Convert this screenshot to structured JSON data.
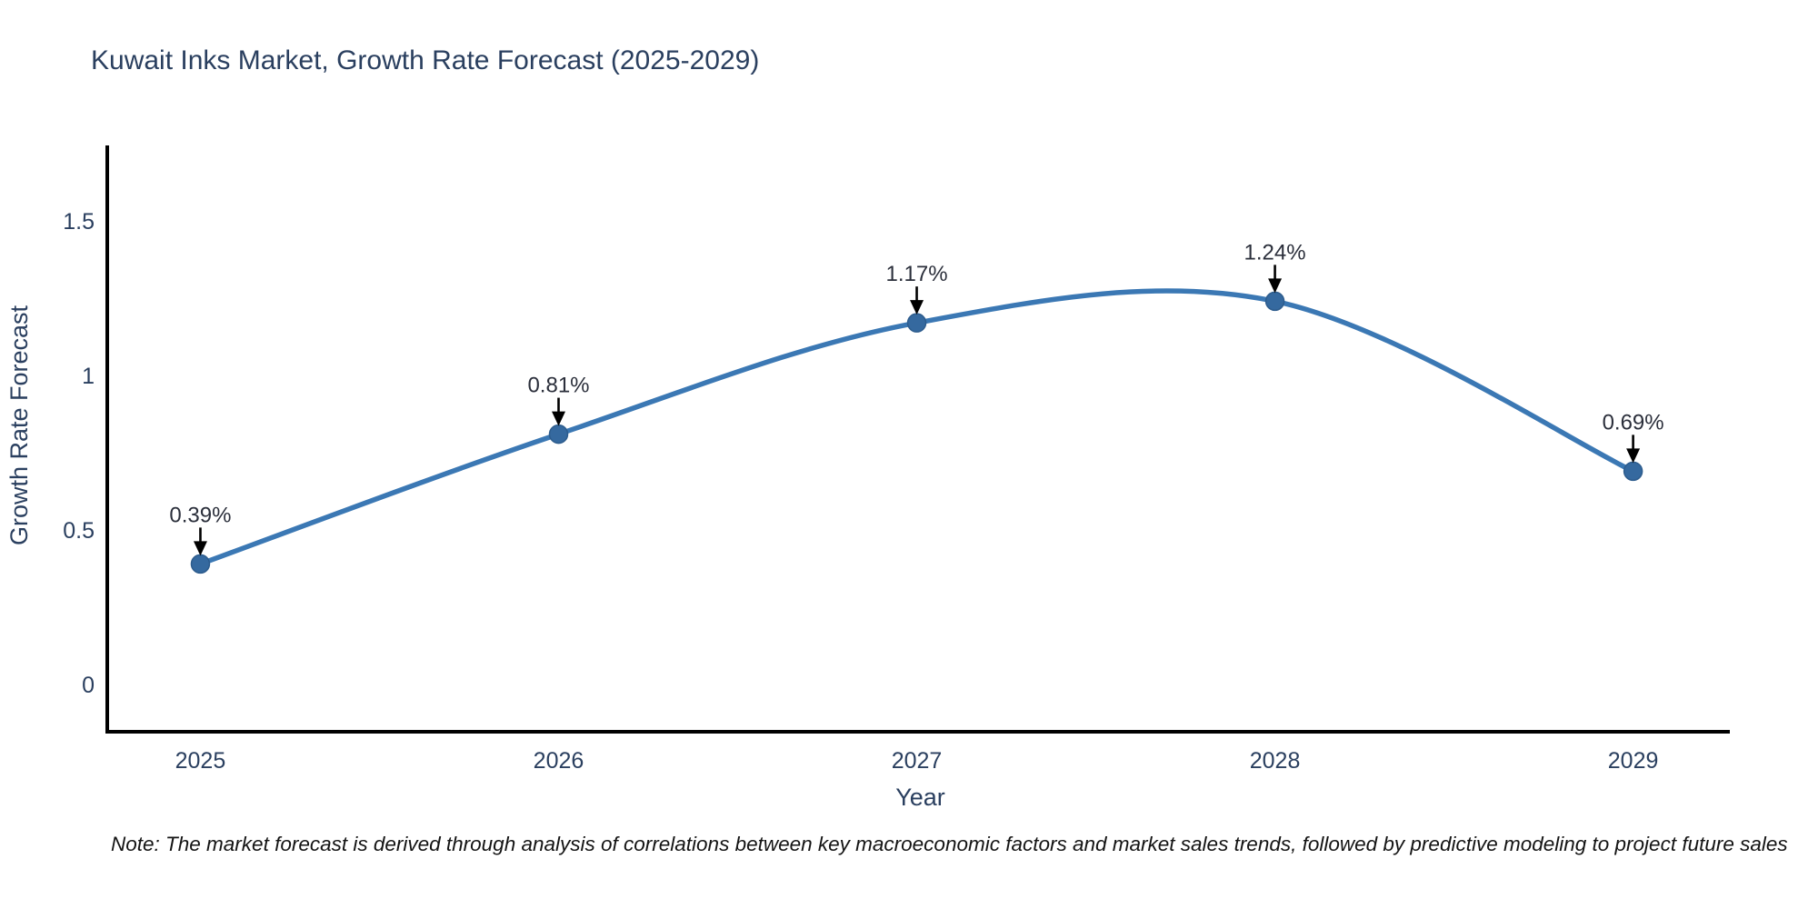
{
  "page": {
    "background": "#ffffff"
  },
  "chart_data": {
    "type": "line",
    "title": "Kuwait Inks Market, Growth Rate Forecast (2025-2029)",
    "x": [
      2025,
      2026,
      2027,
      2028,
      2029
    ],
    "categories": [
      "2025",
      "2026",
      "2027",
      "2028",
      "2029"
    ],
    "series": [
      {
        "name": "Growth Rate Forecast",
        "values": [
          0.39,
          0.81,
          1.17,
          1.24,
          0.69
        ]
      }
    ],
    "point_labels": [
      "0.39%",
      "0.81%",
      "1.17%",
      "1.24%",
      "0.69%"
    ],
    "xlabel": "Year",
    "ylabel": "Growth Rate Forecast",
    "xlim": [
      2024.74,
      2029.27
    ],
    "ylim": [
      -0.153,
      1.744
    ],
    "yticks": [
      0,
      0.5,
      1,
      1.5
    ],
    "ytick_labels": [
      "0",
      "0.5",
      "1",
      "1.5"
    ],
    "xtick_labels": [
      "2025",
      "2026",
      "2027",
      "2028",
      "2029"
    ],
    "grid": false,
    "legend": "none",
    "line_shape": "spline",
    "colors": {
      "line": "#3b78b4",
      "marker_fill": "#35699f",
      "marker_stroke": "#2d5c8d",
      "arrow": "#000000",
      "axis_text": "#2a3f5f",
      "annotation_text": "#2b2f3b",
      "axis_line": "#000000"
    }
  },
  "note": "Note: The market forecast is derived through analysis of correlations between key macroeconomic factors and market sales trends, followed by predictive modeling to project future sales"
}
